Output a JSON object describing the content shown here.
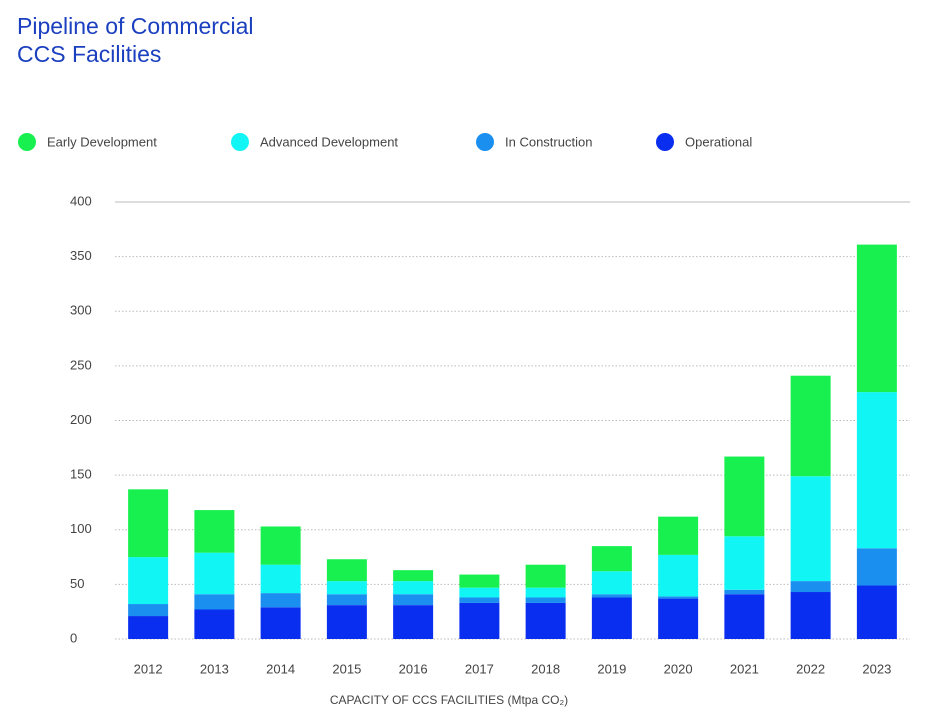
{
  "chart_data": {
    "type": "stacked_bar",
    "title": "Pipeline of Commercial CCS Facilities",
    "x_label": "CAPACITY OF CCS FACILITIES (Mtpa CO₂)",
    "categories": [
      "2012",
      "2013",
      "2014",
      "2015",
      "2016",
      "2017",
      "2018",
      "2019",
      "2020",
      "2021",
      "2022",
      "2023"
    ],
    "series": [
      {
        "name": "Early Development",
        "color": "#17f04f",
        "values": [
          62,
          39,
          35,
          20,
          10,
          12,
          21,
          23,
          35,
          73,
          92,
          135
        ]
      },
      {
        "name": "Advanced Development",
        "color": "#12f5f5",
        "values": [
          43,
          38,
          26,
          12,
          12,
          9,
          9,
          21,
          38,
          49,
          96,
          143
        ]
      },
      {
        "name": "In Construction",
        "color": "#1a8ff0",
        "values": [
          11,
          14,
          13,
          10,
          10,
          5,
          5,
          3,
          2,
          4,
          10,
          34
        ]
      },
      {
        "name": "Operational",
        "color": "#0a2ef0",
        "values": [
          21,
          27,
          29,
          31,
          31,
          33,
          33,
          38,
          37,
          41,
          43,
          49
        ]
      }
    ],
    "ylim": [
      0,
      400
    ],
    "yticks": [
      0,
      50,
      100,
      150,
      200,
      250,
      300,
      350,
      400
    ],
    "grid": true
  }
}
